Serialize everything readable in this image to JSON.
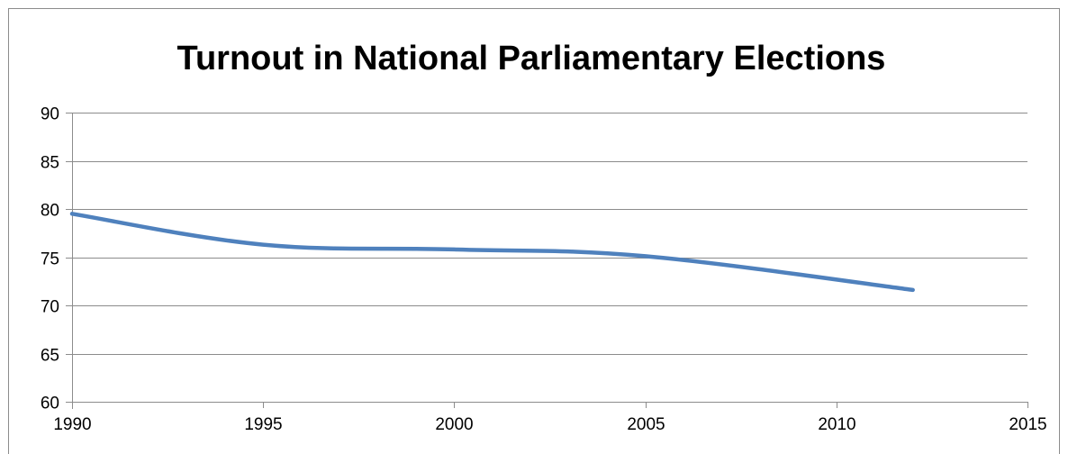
{
  "chart_data": {
    "type": "line",
    "title": "Turnout in National Parliamentary Elections",
    "xlabel": "",
    "ylabel": "",
    "xlim": [
      1990,
      2015
    ],
    "ylim": [
      60,
      90
    ],
    "x_ticks": [
      1990,
      1995,
      2000,
      2005,
      2010,
      2015
    ],
    "y_ticks": [
      60,
      65,
      70,
      75,
      80,
      85,
      90
    ],
    "grid": true,
    "legend": "none",
    "series": [
      {
        "color": "#4f81bd",
        "smooth": true,
        "points": [
          {
            "x": 1990,
            "y": 79.5
          },
          {
            "x": 1995,
            "y": 76.3
          },
          {
            "x": 2000,
            "y": 75.8
          },
          {
            "x": 2005,
            "y": 75.1
          },
          {
            "x": 2012,
            "y": 71.6
          }
        ]
      }
    ]
  },
  "colors": {
    "line": "#4f81bd",
    "grid": "#8c8c8c",
    "axis": "#8c8c8c",
    "frame": "#8c8c8c"
  }
}
